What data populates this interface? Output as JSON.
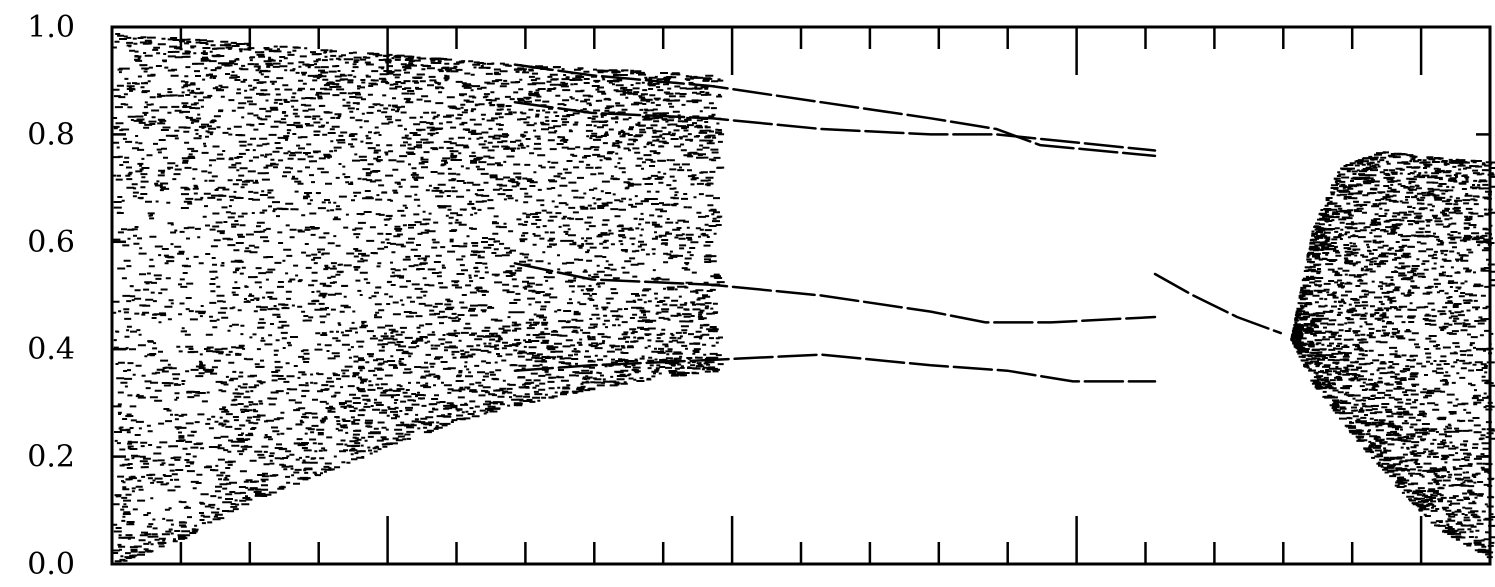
{
  "chart_data": {
    "type": "scatter",
    "title": "",
    "xlabel": "",
    "ylabel": "",
    "ylim": [
      0.0,
      1.0
    ],
    "xlim": [
      0.0,
      1.0
    ],
    "grid": false,
    "legend": "none",
    "y_ticks": [
      {
        "value": 0.0,
        "label": "0.0"
      },
      {
        "value": 0.2,
        "label": "0.2"
      },
      {
        "value": 0.4,
        "label": "0.4"
      },
      {
        "value": 0.6,
        "label": "0.6"
      },
      {
        "value": 0.8,
        "label": "0.8"
      },
      {
        "value": 1.0,
        "label": "1.0"
      }
    ],
    "x_minor_ticks": [
      0.05,
      0.1,
      0.15,
      0.2,
      0.25,
      0.3,
      0.35,
      0.4,
      0.45,
      0.5,
      0.55,
      0.6,
      0.65,
      0.7,
      0.75,
      0.8,
      0.85,
      0.9,
      0.95
    ],
    "x_major_ticks": [
      0.2,
      0.45,
      0.7,
      0.95
    ],
    "chaotic_regions": [
      {
        "name": "left",
        "x_start": 0.0,
        "x_end": 0.44,
        "upper_envelope": [
          [
            0.0,
            0.99
          ],
          [
            0.1,
            0.97
          ],
          [
            0.2,
            0.95
          ],
          [
            0.3,
            0.93
          ],
          [
            0.38,
            0.92
          ],
          [
            0.44,
            0.91
          ]
        ],
        "lower_envelope": [
          [
            0.0,
            0.0
          ],
          [
            0.05,
            0.05
          ],
          [
            0.1,
            0.12
          ],
          [
            0.15,
            0.17
          ],
          [
            0.2,
            0.22
          ],
          [
            0.25,
            0.27
          ],
          [
            0.3,
            0.3
          ],
          [
            0.35,
            0.33
          ],
          [
            0.4,
            0.35
          ],
          [
            0.44,
            0.36
          ]
        ]
      },
      {
        "name": "right",
        "x_start": 0.855,
        "x_end": 1.0,
        "upper_envelope": [
          [
            0.855,
            0.42
          ],
          [
            0.87,
            0.62
          ],
          [
            0.89,
            0.74
          ],
          [
            0.92,
            0.77
          ],
          [
            0.95,
            0.76
          ],
          [
            1.0,
            0.75
          ]
        ],
        "lower_envelope": [
          [
            0.855,
            0.42
          ],
          [
            0.87,
            0.34
          ],
          [
            0.9,
            0.24
          ],
          [
            0.93,
            0.15
          ],
          [
            0.96,
            0.07
          ],
          [
            1.0,
            0.01
          ]
        ]
      }
    ],
    "periodic_branches": [
      {
        "name": "branch-1",
        "points": [
          [
            0.37,
            0.93
          ],
          [
            0.44,
            0.91
          ],
          [
            0.55,
            0.89
          ],
          [
            0.65,
            0.86
          ],
          [
            0.75,
            0.83
          ],
          [
            0.81,
            0.81
          ],
          [
            0.85,
            0.78
          ],
          [
            0.955,
            0.76
          ]
        ]
      },
      {
        "name": "branch-2",
        "points": [
          [
            0.37,
            0.86
          ],
          [
            0.44,
            0.84
          ],
          [
            0.55,
            0.83
          ],
          [
            0.65,
            0.81
          ],
          [
            0.75,
            0.8
          ],
          [
            0.81,
            0.8
          ],
          [
            0.955,
            0.77
          ]
        ]
      },
      {
        "name": "branch-3",
        "points": [
          [
            0.37,
            0.56
          ],
          [
            0.44,
            0.53
          ],
          [
            0.55,
            0.52
          ],
          [
            0.65,
            0.5
          ],
          [
            0.75,
            0.47
          ],
          [
            0.8,
            0.45
          ],
          [
            0.86,
            0.45
          ],
          [
            0.955,
            0.46
          ]
        ]
      },
      {
        "name": "branch-4",
        "points": [
          [
            0.37,
            0.36
          ],
          [
            0.44,
            0.37
          ],
          [
            0.55,
            0.38
          ],
          [
            0.65,
            0.39
          ],
          [
            0.75,
            0.37
          ],
          [
            0.82,
            0.36
          ],
          [
            0.88,
            0.34
          ],
          [
            0.955,
            0.34
          ]
        ]
      },
      {
        "name": "branch-5",
        "points": [
          [
            0.955,
            0.54
          ],
          [
            0.99,
            0.5
          ],
          [
            1.03,
            0.46
          ],
          [
            1.07,
            0.43
          ]
        ]
      }
    ]
  }
}
